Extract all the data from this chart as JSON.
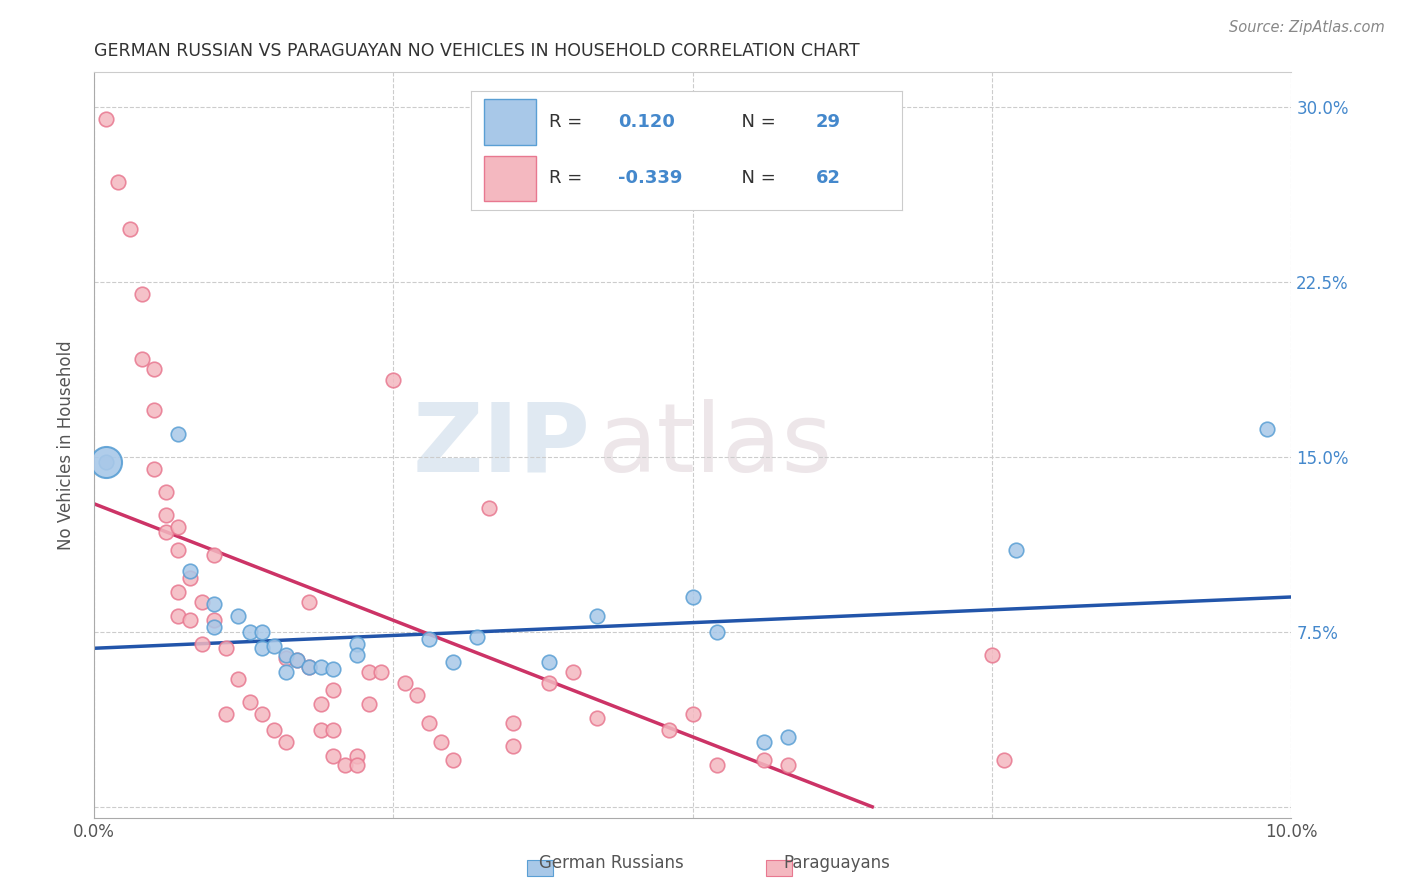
{
  "title": "GERMAN RUSSIAN VS PARAGUAYAN NO VEHICLES IN HOUSEHOLD CORRELATION CHART",
  "source": "Source: ZipAtlas.com",
  "ylabel": "No Vehicles in Household",
  "xlim": [
    0.0,
    0.1
  ],
  "ylim": [
    -0.005,
    0.315
  ],
  "watermark_zip": "ZIP",
  "watermark_atlas": "atlas",
  "legend_r_blue": "0.120",
  "legend_n_blue": "29",
  "legend_r_pink": "-0.339",
  "legend_n_pink": "62",
  "blue_color": "#a8c8e8",
  "blue_edge_color": "#5a9fd4",
  "pink_color": "#f4b8c0",
  "pink_edge_color": "#e87890",
  "line_blue_color": "#2255aa",
  "line_pink_color": "#cc3366",
  "title_color": "#333333",
  "right_axis_color": "#4488cc",
  "legend_text_color": "#4488cc",
  "legend_rval_color": "#4488cc",
  "blue_scatter": [
    [
      0.001,
      0.148
    ],
    [
      0.007,
      0.16
    ],
    [
      0.008,
      0.101
    ],
    [
      0.01,
      0.087
    ],
    [
      0.01,
      0.077
    ],
    [
      0.012,
      0.082
    ],
    [
      0.013,
      0.075
    ],
    [
      0.014,
      0.075
    ],
    [
      0.014,
      0.068
    ],
    [
      0.015,
      0.069
    ],
    [
      0.016,
      0.065
    ],
    [
      0.016,
      0.058
    ],
    [
      0.017,
      0.063
    ],
    [
      0.018,
      0.06
    ],
    [
      0.019,
      0.06
    ],
    [
      0.02,
      0.059
    ],
    [
      0.022,
      0.07
    ],
    [
      0.022,
      0.065
    ],
    [
      0.028,
      0.072
    ],
    [
      0.03,
      0.062
    ],
    [
      0.032,
      0.073
    ],
    [
      0.038,
      0.062
    ],
    [
      0.042,
      0.082
    ],
    [
      0.05,
      0.09
    ],
    [
      0.052,
      0.075
    ],
    [
      0.056,
      0.028
    ],
    [
      0.058,
      0.03
    ],
    [
      0.077,
      0.11
    ],
    [
      0.098,
      0.162
    ]
  ],
  "pink_scatter": [
    [
      0.001,
      0.295
    ],
    [
      0.002,
      0.268
    ],
    [
      0.003,
      0.248
    ],
    [
      0.004,
      0.22
    ],
    [
      0.004,
      0.192
    ],
    [
      0.005,
      0.188
    ],
    [
      0.005,
      0.17
    ],
    [
      0.005,
      0.145
    ],
    [
      0.006,
      0.135
    ],
    [
      0.006,
      0.125
    ],
    [
      0.006,
      0.118
    ],
    [
      0.007,
      0.12
    ],
    [
      0.007,
      0.11
    ],
    [
      0.007,
      0.092
    ],
    [
      0.007,
      0.082
    ],
    [
      0.008,
      0.098
    ],
    [
      0.008,
      0.08
    ],
    [
      0.009,
      0.088
    ],
    [
      0.009,
      0.07
    ],
    [
      0.01,
      0.108
    ],
    [
      0.01,
      0.08
    ],
    [
      0.011,
      0.068
    ],
    [
      0.011,
      0.04
    ],
    [
      0.012,
      0.055
    ],
    [
      0.013,
      0.045
    ],
    [
      0.014,
      0.04
    ],
    [
      0.015,
      0.033
    ],
    [
      0.016,
      0.028
    ],
    [
      0.016,
      0.064
    ],
    [
      0.017,
      0.063
    ],
    [
      0.018,
      0.088
    ],
    [
      0.018,
      0.06
    ],
    [
      0.019,
      0.044
    ],
    [
      0.019,
      0.033
    ],
    [
      0.02,
      0.05
    ],
    [
      0.02,
      0.033
    ],
    [
      0.02,
      0.022
    ],
    [
      0.021,
      0.018
    ],
    [
      0.022,
      0.022
    ],
    [
      0.022,
      0.018
    ],
    [
      0.023,
      0.058
    ],
    [
      0.023,
      0.044
    ],
    [
      0.024,
      0.058
    ],
    [
      0.025,
      0.183
    ],
    [
      0.026,
      0.053
    ],
    [
      0.027,
      0.048
    ],
    [
      0.028,
      0.036
    ],
    [
      0.029,
      0.028
    ],
    [
      0.03,
      0.02
    ],
    [
      0.033,
      0.128
    ],
    [
      0.035,
      0.036
    ],
    [
      0.035,
      0.026
    ],
    [
      0.038,
      0.053
    ],
    [
      0.04,
      0.058
    ],
    [
      0.042,
      0.038
    ],
    [
      0.048,
      0.033
    ],
    [
      0.05,
      0.04
    ],
    [
      0.052,
      0.018
    ],
    [
      0.056,
      0.02
    ],
    [
      0.058,
      0.018
    ],
    [
      0.075,
      0.065
    ],
    [
      0.076,
      0.02
    ]
  ],
  "blue_line_x": [
    0.0,
    0.1
  ],
  "blue_line_y": [
    0.068,
    0.09
  ],
  "pink_line_x": [
    0.0,
    0.065
  ],
  "pink_line_y": [
    0.13,
    0.0
  ]
}
